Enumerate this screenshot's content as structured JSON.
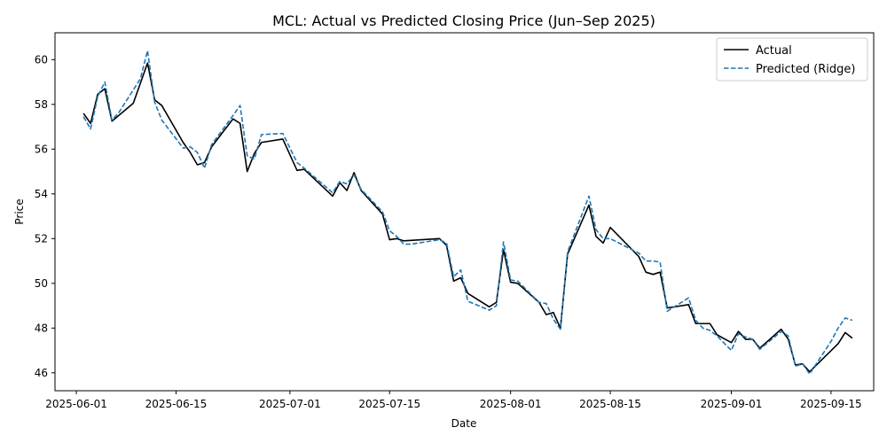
{
  "chart_data": {
    "type": "line",
    "title": "MCL: Actual vs Predicted Closing Price (Jun–Sep 2025)",
    "xlabel": "Date",
    "ylabel": "Price",
    "xlim": [
      "2025-05-29",
      "2025-09-21"
    ],
    "ylim": [
      45.2,
      61.2
    ],
    "x_ticks": [
      "2025-06-01",
      "2025-06-15",
      "2025-07-01",
      "2025-07-15",
      "2025-08-01",
      "2025-08-15",
      "2025-09-01",
      "2025-09-15"
    ],
    "y_ticks": [
      46,
      48,
      50,
      52,
      54,
      56,
      58,
      60
    ],
    "grid": false,
    "legend_position": "top-right",
    "series": [
      {
        "name": "Actual",
        "color": "#000000",
        "style": "solid",
        "points": [
          [
            "2025-06-02",
            57.6
          ],
          [
            "2025-06-03",
            57.15
          ],
          [
            "2025-06-04",
            58.45
          ],
          [
            "2025-06-05",
            58.7
          ],
          [
            "2025-06-06",
            57.25
          ],
          [
            "2025-06-09",
            58.05
          ],
          [
            "2025-06-11",
            59.85
          ],
          [
            "2025-06-12",
            58.2
          ],
          [
            "2025-06-13",
            57.95
          ],
          [
            "2025-06-16",
            56.3
          ],
          [
            "2025-06-17",
            55.85
          ],
          [
            "2025-06-18",
            55.3
          ],
          [
            "2025-06-19",
            55.4
          ],
          [
            "2025-06-20",
            56.1
          ],
          [
            "2025-06-23",
            57.35
          ],
          [
            "2025-06-24",
            57.15
          ],
          [
            "2025-06-25",
            55.0
          ],
          [
            "2025-06-26",
            55.8
          ],
          [
            "2025-06-27",
            56.3
          ],
          [
            "2025-06-30",
            56.45
          ],
          [
            "2025-07-02",
            55.05
          ],
          [
            "2025-07-03",
            55.1
          ],
          [
            "2025-07-07",
            53.9
          ],
          [
            "2025-07-08",
            54.5
          ],
          [
            "2025-07-09",
            54.15
          ],
          [
            "2025-07-10",
            54.95
          ],
          [
            "2025-07-11",
            54.15
          ],
          [
            "2025-07-14",
            53.1
          ],
          [
            "2025-07-15",
            51.95
          ],
          [
            "2025-07-16",
            52.0
          ],
          [
            "2025-07-17",
            51.9
          ],
          [
            "2025-07-22",
            52.0
          ],
          [
            "2025-07-23",
            51.7
          ],
          [
            "2025-07-24",
            50.1
          ],
          [
            "2025-07-25",
            50.25
          ],
          [
            "2025-07-26",
            49.55
          ],
          [
            "2025-07-29",
            48.95
          ],
          [
            "2025-07-30",
            49.15
          ],
          [
            "2025-07-31",
            51.5
          ],
          [
            "2025-08-01",
            50.05
          ],
          [
            "2025-08-02",
            50.0
          ],
          [
            "2025-08-05",
            49.15
          ],
          [
            "2025-08-06",
            48.6
          ],
          [
            "2025-08-07",
            48.7
          ],
          [
            "2025-08-08",
            48.0
          ],
          [
            "2025-08-09",
            51.3
          ],
          [
            "2025-08-12",
            53.5
          ],
          [
            "2025-08-13",
            52.1
          ],
          [
            "2025-08-14",
            51.8
          ],
          [
            "2025-08-15",
            52.5
          ],
          [
            "2025-08-19",
            51.2
          ],
          [
            "2025-08-20",
            50.5
          ],
          [
            "2025-08-21",
            50.4
          ],
          [
            "2025-08-22",
            50.5
          ],
          [
            "2025-08-23",
            48.9
          ],
          [
            "2025-08-26",
            49.05
          ],
          [
            "2025-08-27",
            48.2
          ],
          [
            "2025-08-29",
            48.2
          ],
          [
            "2025-08-30",
            47.7
          ],
          [
            "2025-09-01",
            47.35
          ],
          [
            "2025-09-02",
            47.85
          ],
          [
            "2025-09-03",
            47.5
          ],
          [
            "2025-09-04",
            47.5
          ],
          [
            "2025-09-05",
            47.1
          ],
          [
            "2025-09-08",
            47.95
          ],
          [
            "2025-09-09",
            47.5
          ],
          [
            "2025-09-10",
            46.35
          ],
          [
            "2025-09-11",
            46.4
          ],
          [
            "2025-09-12",
            46.05
          ],
          [
            "2025-09-16",
            47.3
          ],
          [
            "2025-09-17",
            47.8
          ],
          [
            "2025-09-18",
            47.55
          ]
        ]
      },
      {
        "name": "Predicted (Ridge)",
        "color": "#1f77b4",
        "style": "dashed",
        "points": [
          [
            "2025-06-02",
            57.45
          ],
          [
            "2025-06-03",
            56.9
          ],
          [
            "2025-06-04",
            58.35
          ],
          [
            "2025-06-05",
            59.0
          ],
          [
            "2025-06-06",
            57.3
          ],
          [
            "2025-06-07",
            57.65
          ],
          [
            "2025-06-09",
            58.65
          ],
          [
            "2025-06-10",
            59.15
          ],
          [
            "2025-06-11",
            60.4
          ],
          [
            "2025-06-12",
            58.1
          ],
          [
            "2025-06-13",
            57.3
          ],
          [
            "2025-06-16",
            56.05
          ],
          [
            "2025-06-17",
            56.1
          ],
          [
            "2025-06-18",
            55.85
          ],
          [
            "2025-06-19",
            55.15
          ],
          [
            "2025-06-20",
            56.2
          ],
          [
            "2025-06-23",
            57.5
          ],
          [
            "2025-06-24",
            57.95
          ],
          [
            "2025-06-25",
            55.7
          ],
          [
            "2025-06-26",
            55.55
          ],
          [
            "2025-06-27",
            56.65
          ],
          [
            "2025-06-30",
            56.7
          ],
          [
            "2025-07-02",
            55.4
          ],
          [
            "2025-07-03",
            55.15
          ],
          [
            "2025-07-07",
            54.05
          ],
          [
            "2025-07-08",
            54.55
          ],
          [
            "2025-07-09",
            54.45
          ],
          [
            "2025-07-10",
            54.85
          ],
          [
            "2025-07-11",
            54.2
          ],
          [
            "2025-07-14",
            53.2
          ],
          [
            "2025-07-15",
            52.35
          ],
          [
            "2025-07-16",
            52.1
          ],
          [
            "2025-07-17",
            51.75
          ],
          [
            "2025-07-18",
            51.75
          ],
          [
            "2025-07-22",
            51.95
          ],
          [
            "2025-07-23",
            51.8
          ],
          [
            "2025-07-24",
            50.3
          ],
          [
            "2025-07-25",
            50.6
          ],
          [
            "2025-07-26",
            49.2
          ],
          [
            "2025-07-29",
            48.8
          ],
          [
            "2025-07-30",
            49.0
          ],
          [
            "2025-07-31",
            51.85
          ],
          [
            "2025-08-01",
            50.15
          ],
          [
            "2025-08-02",
            50.1
          ],
          [
            "2025-08-05",
            49.15
          ],
          [
            "2025-08-06",
            49.1
          ],
          [
            "2025-08-07",
            48.4
          ],
          [
            "2025-08-08",
            47.95
          ],
          [
            "2025-08-09",
            51.4
          ],
          [
            "2025-08-12",
            53.9
          ],
          [
            "2025-08-13",
            52.4
          ],
          [
            "2025-08-14",
            52.0
          ],
          [
            "2025-08-15",
            52.0
          ],
          [
            "2025-08-19",
            51.35
          ],
          [
            "2025-08-20",
            51.0
          ],
          [
            "2025-08-21",
            51.0
          ],
          [
            "2025-08-22",
            50.95
          ],
          [
            "2025-08-23",
            48.75
          ],
          [
            "2025-08-26",
            49.35
          ],
          [
            "2025-08-27",
            48.35
          ],
          [
            "2025-08-28",
            48.0
          ],
          [
            "2025-08-29",
            47.9
          ],
          [
            "2025-08-30",
            47.65
          ],
          [
            "2025-09-01",
            47.0
          ],
          [
            "2025-09-02",
            47.75
          ],
          [
            "2025-09-03",
            47.6
          ],
          [
            "2025-09-04",
            47.5
          ],
          [
            "2025-09-05",
            47.05
          ],
          [
            "2025-09-08",
            47.85
          ],
          [
            "2025-09-09",
            47.65
          ],
          [
            "2025-09-10",
            46.3
          ],
          [
            "2025-09-11",
            46.4
          ],
          [
            "2025-09-12",
            45.95
          ],
          [
            "2025-09-15",
            47.4
          ],
          [
            "2025-09-16",
            48.0
          ],
          [
            "2025-09-17",
            48.45
          ],
          [
            "2025-09-18",
            48.35
          ]
        ]
      }
    ]
  }
}
